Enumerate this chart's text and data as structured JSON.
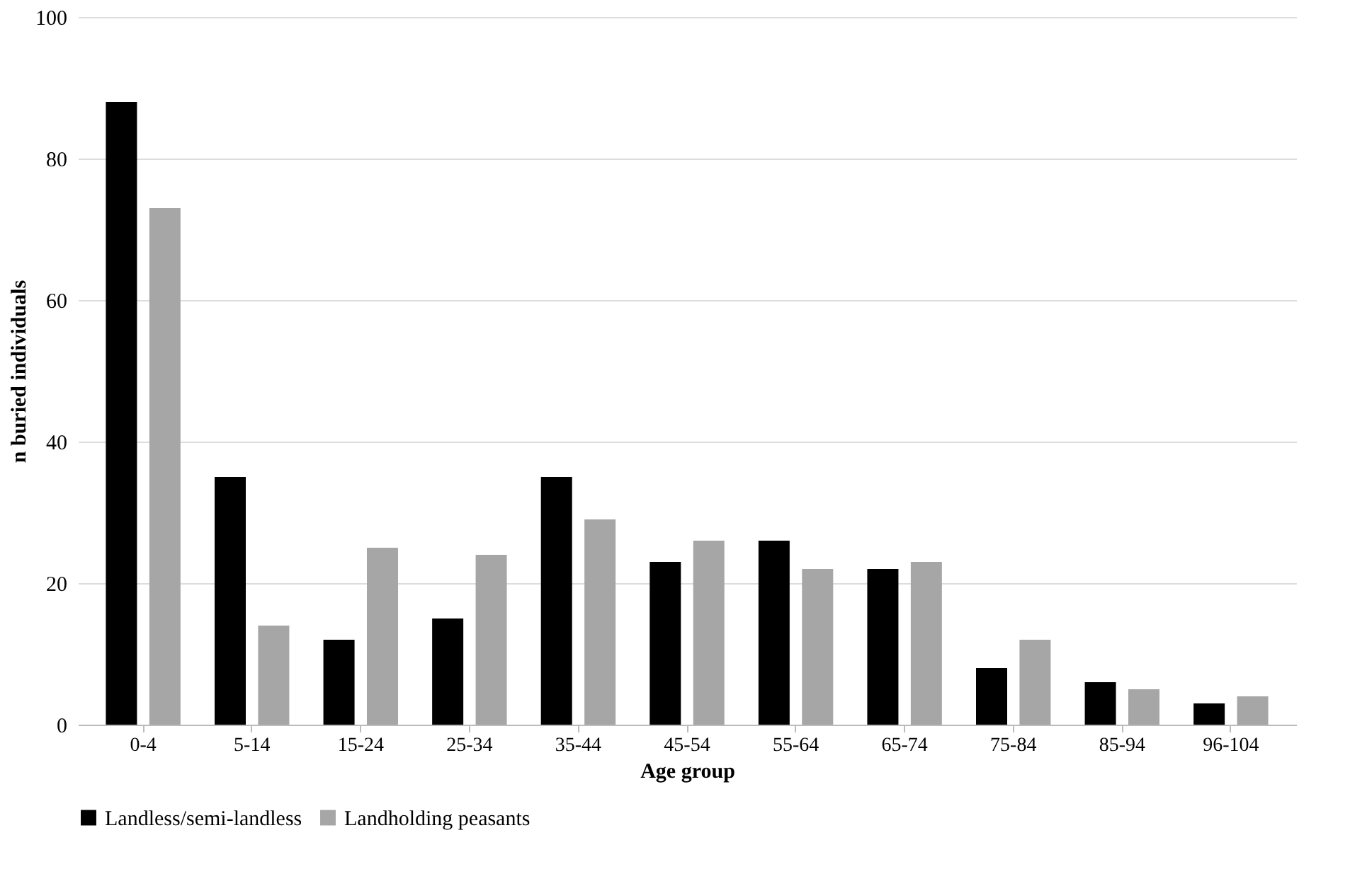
{
  "chart_data": {
    "type": "bar",
    "xlabel": "Age group",
    "ylabel": "n buried  individuals",
    "categories": [
      "0-4",
      "5-14",
      "15-24",
      "25-34",
      "35-44",
      "45-54",
      "55-64",
      "65-74",
      "75-84",
      "85-94",
      "96-104"
    ],
    "series": [
      {
        "name": "Landless/semi-landless",
        "color": "#000000",
        "values": [
          88,
          35,
          12,
          15,
          35,
          23,
          26,
          22,
          8,
          6,
          3
        ]
      },
      {
        "name": "Landholding peasants",
        "color": "#a6a6a6",
        "values": [
          73,
          14,
          25,
          24,
          29,
          26,
          22,
          23,
          12,
          5,
          4
        ]
      }
    ],
    "ylim": [
      0,
      100
    ],
    "yticks": [
      0,
      20,
      40,
      60,
      80,
      100
    ],
    "grid": "y",
    "legend": "bottom"
  }
}
